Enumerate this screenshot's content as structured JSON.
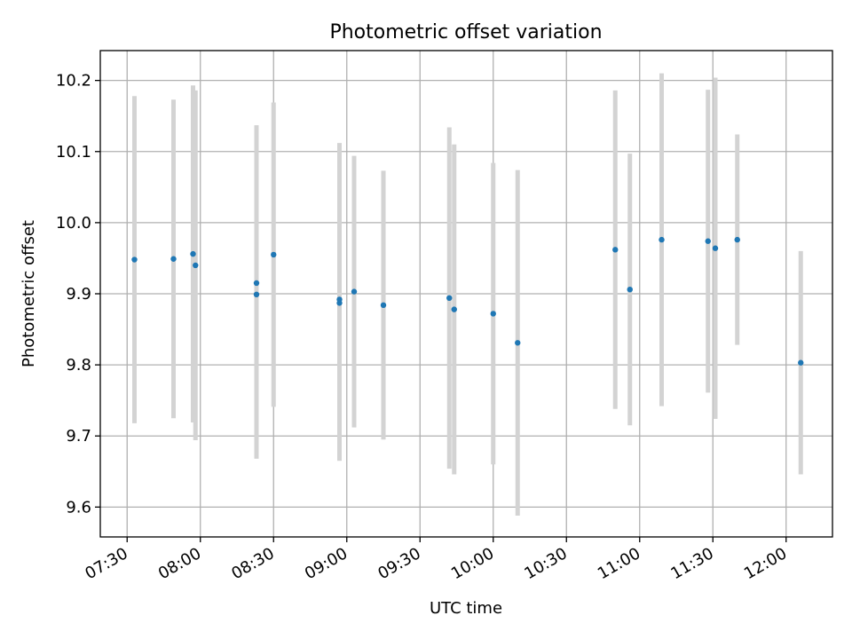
{
  "chart_data": {
    "type": "scatter",
    "title": "Photometric offset variation",
    "xlabel": "UTC time",
    "ylabel": "Photometric offset",
    "x_ticks": [
      "07:30",
      "08:00",
      "08:30",
      "09:00",
      "09:30",
      "10:00",
      "10:30",
      "11:00",
      "11:30",
      "12:00"
    ],
    "y_ticks": [
      "9.6",
      "9.7",
      "9.8",
      "9.9",
      "10.0",
      "10.1",
      "10.2"
    ],
    "xlim": [
      "07:19",
      "12:19"
    ],
    "ylim": [
      9.558,
      10.242
    ],
    "grid": true,
    "error_bar_color": "#d3d3d3",
    "marker_color": "#1f77b4",
    "series": [
      {
        "points": [
          {
            "t": "07:33",
            "y": 9.948,
            "lo": 9.718,
            "hi": 10.178
          },
          {
            "t": "07:49",
            "y": 9.949,
            "lo": 9.725,
            "hi": 10.173
          },
          {
            "t": "07:57",
            "y": 9.956,
            "lo": 9.719,
            "hi": 10.193
          },
          {
            "t": "07:58",
            "y": 9.94,
            "lo": 9.694,
            "hi": 10.186
          },
          {
            "t": "08:23",
            "y": 9.899,
            "lo": 9.668,
            "hi": 10.13
          },
          {
            "t": "08:23",
            "y": 9.915,
            "lo": 9.693,
            "hi": 10.137
          },
          {
            "t": "08:30",
            "y": 9.955,
            "lo": 9.741,
            "hi": 10.169
          },
          {
            "t": "08:57",
            "y": 9.887,
            "lo": 9.665,
            "hi": 10.109
          },
          {
            "t": "08:57",
            "y": 9.892,
            "lo": 9.672,
            "hi": 10.112
          },
          {
            "t": "09:03",
            "y": 9.903,
            "lo": 9.712,
            "hi": 10.094
          },
          {
            "t": "09:15",
            "y": 9.884,
            "lo": 9.695,
            "hi": 10.073
          },
          {
            "t": "09:42",
            "y": 9.894,
            "lo": 9.654,
            "hi": 10.134
          },
          {
            "t": "09:44",
            "y": 9.878,
            "lo": 9.646,
            "hi": 10.11
          },
          {
            "t": "10:00",
            "y": 9.872,
            "lo": 9.66,
            "hi": 10.084
          },
          {
            "t": "10:10",
            "y": 9.831,
            "lo": 9.588,
            "hi": 10.074
          },
          {
            "t": "10:50",
            "y": 9.962,
            "lo": 9.738,
            "hi": 10.186
          },
          {
            "t": "10:56",
            "y": 9.906,
            "lo": 9.715,
            "hi": 10.097
          },
          {
            "t": "11:09",
            "y": 9.976,
            "lo": 9.742,
            "hi": 10.21
          },
          {
            "t": "11:28",
            "y": 9.974,
            "lo": 9.761,
            "hi": 10.187
          },
          {
            "t": "11:31",
            "y": 9.964,
            "lo": 9.724,
            "hi": 10.204
          },
          {
            "t": "11:40",
            "y": 9.976,
            "lo": 9.828,
            "hi": 10.124
          },
          {
            "t": "12:06",
            "y": 9.803,
            "lo": 9.646,
            "hi": 9.96
          }
        ]
      }
    ]
  }
}
